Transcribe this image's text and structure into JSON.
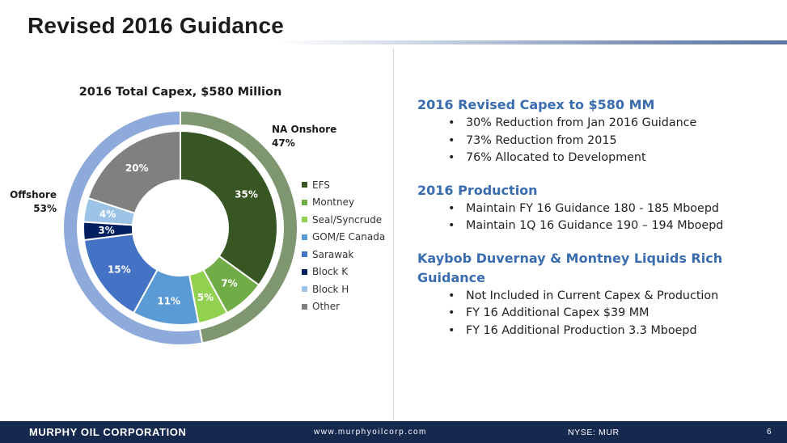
{
  "slide": {
    "title": "Revised 2016 Guidance"
  },
  "chart_data": {
    "type": "pie",
    "title": "2016 Total Capex, $580 Million",
    "inner_ring": [
      {
        "label": "EFS",
        "value": 35,
        "value_label": "35%",
        "color": "#375623"
      },
      {
        "label": "Montney",
        "value": 7,
        "value_label": "7%",
        "color": "#70ad47"
      },
      {
        "label": "Seal/Syncrude",
        "value": 5,
        "value_label": "5%",
        "color": "#92d050"
      },
      {
        "label": "GOM/E Canada",
        "value": 11,
        "value_label": "11%",
        "color": "#5b9bd5"
      },
      {
        "label": "Sarawak",
        "value": 15,
        "value_label": "15%",
        "color": "#4472c4"
      },
      {
        "label": "Block K",
        "value": 3,
        "value_label": "3%",
        "color": "#002060"
      },
      {
        "label": "Block H",
        "value": 4,
        "value_label": "4%",
        "color": "#9dc3e6"
      },
      {
        "label": "Other",
        "value": 20,
        "value_label": "20%",
        "color": "#808080"
      }
    ],
    "outer_ring": [
      {
        "label": "NA Onshore",
        "value": 47,
        "value_label": "47%",
        "color": "#7f9770"
      },
      {
        "label": "Offshore",
        "value": 53,
        "value_label": "53%",
        "color": "#8eaadb"
      }
    ],
    "legend_position": "right"
  },
  "bullets": {
    "sections": [
      {
        "heading": "2016 Revised Capex to $580 MM",
        "items": [
          "30% Reduction from Jan 2016 Guidance",
          "73% Reduction from 2015",
          "76% Allocated to Development"
        ]
      },
      {
        "heading": "2016 Production",
        "items": [
          "Maintain FY 16 Guidance 180 - 185 Mboepd",
          "Maintain 1Q 16 Guidance 190 – 194 Mboepd"
        ]
      },
      {
        "heading": "Kaybob Duvernay & Montney Liquids Rich Guidance",
        "items": [
          "Not Included in Current Capex & Production",
          "FY 16 Additional Capex $39 MM",
          "FY 16 Additional Production 3.3 Mboepd"
        ]
      }
    ],
    "bullet_char": "•"
  },
  "footer": {
    "company": "MURPHY OIL CORPORATION",
    "website": "www.murphyoilcorp.com",
    "ticker": "NYSE: MUR",
    "page": "6"
  }
}
